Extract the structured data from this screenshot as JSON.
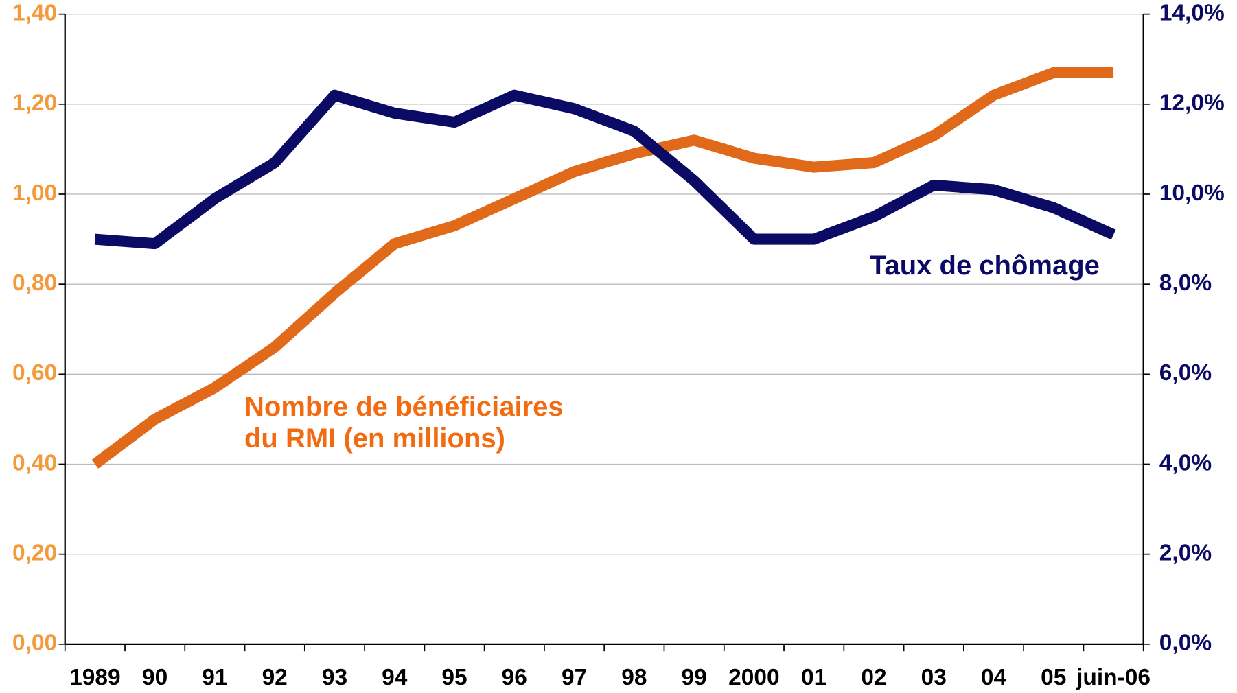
{
  "chart_data": {
    "type": "line",
    "categories": [
      "1989",
      "90",
      "91",
      "92",
      "93",
      "94",
      "95",
      "96",
      "97",
      "98",
      "99",
      "2000",
      "01",
      "02",
      "03",
      "04",
      "05",
      "juin-06"
    ],
    "series": [
      {
        "name": "Nombre de bénéficiaires du RMI (en millions)",
        "color": "#e0691a",
        "axis": "y",
        "values": [
          0.4,
          0.5,
          0.57,
          0.66,
          0.78,
          0.89,
          0.93,
          0.99,
          1.05,
          1.09,
          1.12,
          1.08,
          1.06,
          1.07,
          1.13,
          1.22,
          1.27,
          1.27
        ]
      },
      {
        "name": "Taux de chômage",
        "color": "#0b0b66",
        "axis": "y2",
        "values": [
          9.0,
          8.9,
          9.9,
          10.7,
          12.2,
          11.8,
          11.6,
          12.2,
          11.9,
          11.4,
          10.3,
          9.0,
          9.0,
          9.5,
          10.2,
          10.1,
          9.7,
          9.1
        ]
      }
    ],
    "ylim": [
      0,
      1.4
    ],
    "yticks": [
      {
        "value": 0,
        "label": "0,00"
      },
      {
        "value": 0.2,
        "label": "0,20"
      },
      {
        "value": 0.4,
        "label": "0,40"
      },
      {
        "value": 0.6,
        "label": "0,60"
      },
      {
        "value": 0.8,
        "label": "0,80"
      },
      {
        "value": 1.0,
        "label": "1,00"
      },
      {
        "value": 1.2,
        "label": "1,20"
      },
      {
        "value": 1.4,
        "label": "1,40"
      }
    ],
    "y2lim": [
      0,
      14
    ],
    "y2ticks": [
      {
        "value": 0,
        "label": "0,0%"
      },
      {
        "value": 2,
        "label": "2,0%"
      },
      {
        "value": 4,
        "label": "4,0%"
      },
      {
        "value": 6,
        "label": "6,0%"
      },
      {
        "value": 8,
        "label": "8,0%"
      },
      {
        "value": 10,
        "label": "10,0%"
      },
      {
        "value": 12,
        "label": "12,0%"
      },
      {
        "value": 14,
        "label": "14,0%"
      }
    ],
    "grid": true,
    "ytick_color": "#f39a3a"
  }
}
